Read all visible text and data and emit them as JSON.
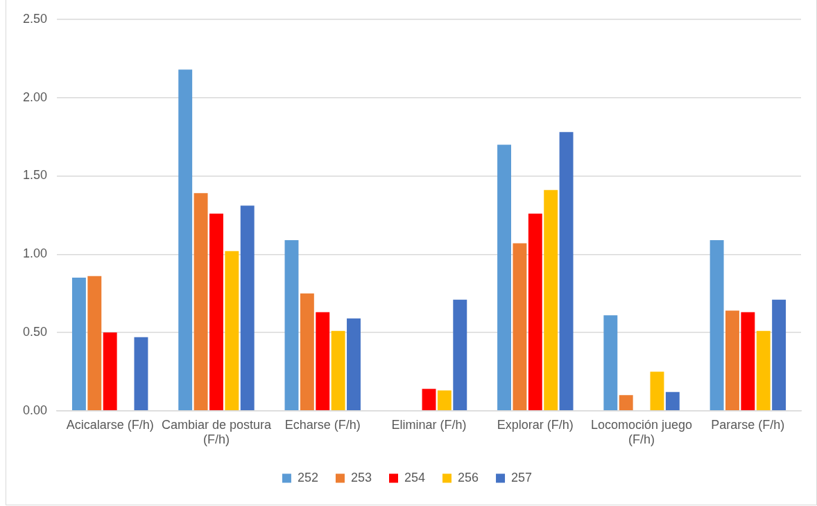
{
  "chart_data": {
    "type": "bar",
    "categories": [
      "Acicalarse (F/h)",
      "Cambiar de postura (F/h)",
      "Echarse (F/h)",
      "Eliminar (F/h)",
      "Explorar (F/h)",
      "Locomoción juego (F/h)",
      "Pararse (F/h)"
    ],
    "series": [
      {
        "name": "252",
        "color": "#5b9bd5",
        "values": [
          0.85,
          2.18,
          1.09,
          null,
          1.7,
          0.61,
          1.09
        ]
      },
      {
        "name": "253",
        "color": "#ed7d31",
        "values": [
          0.86,
          1.39,
          0.75,
          null,
          1.07,
          0.1,
          0.64
        ]
      },
      {
        "name": "254",
        "color": "#ff0000",
        "values": [
          0.5,
          1.26,
          0.63,
          0.14,
          1.26,
          null,
          0.63
        ]
      },
      {
        "name": "256",
        "color": "#ffc000",
        "values": [
          null,
          1.02,
          0.51,
          0.13,
          1.41,
          0.25,
          0.51
        ]
      },
      {
        "name": "257",
        "color": "#4472c4",
        "values": [
          0.47,
          1.31,
          0.59,
          0.71,
          1.78,
          0.12,
          0.71
        ]
      }
    ],
    "ylim": [
      0,
      2.5
    ],
    "yticks": [
      {
        "value": 0,
        "label": "0.00"
      },
      {
        "value": 0.5,
        "label": "0.50"
      },
      {
        "value": 1,
        "label": "1.00"
      },
      {
        "value": 1.5,
        "label": "1.50"
      },
      {
        "value": 2,
        "label": "2.00"
      },
      {
        "value": 2.5,
        "label": "2.50"
      }
    ],
    "grid": "y",
    "legend": "bottom"
  }
}
